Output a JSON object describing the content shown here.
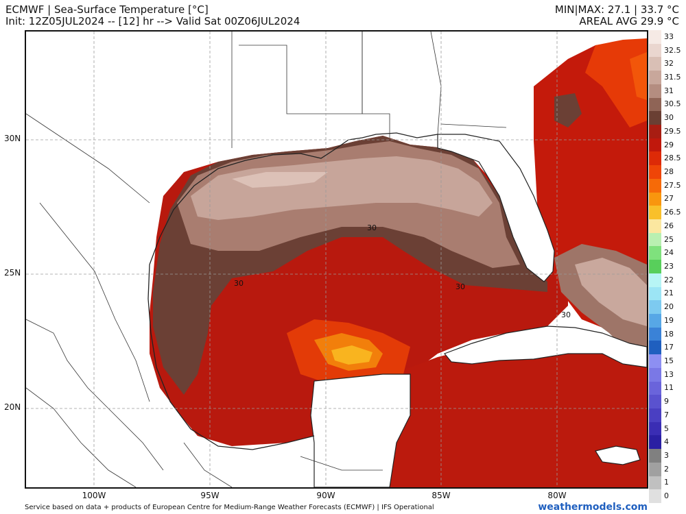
{
  "header": {
    "title": "ECMWF | Sea-Surface Temperature [°C]",
    "subtitle": "Init: 12Z05JUL2024 -- [12] hr --> Valid Sat 00Z06JUL2024",
    "minmax": "MIN|MAX: 27.1 | 33.7 °C",
    "areal_avg": "AREAL AVG 29.9 °C"
  },
  "axes": {
    "lat_labels": [
      "30N",
      "25N",
      "20N"
    ],
    "lon_labels": [
      "100W",
      "95W",
      "90W",
      "85W",
      "80W"
    ]
  },
  "contours": {
    "label": "30",
    "labels": [
      "30",
      "30",
      "30",
      "30"
    ]
  },
  "colorbar": {
    "labels": [
      "33",
      "32.5",
      "32",
      "31.5",
      "31",
      "30.5",
      "30",
      "29.5",
      "29",
      "28.5",
      "28",
      "27.5",
      "27",
      "26.5",
      "26",
      "25",
      "24",
      "23",
      "22",
      "21",
      "20",
      "19",
      "18",
      "17",
      "15",
      "13",
      "11",
      "9",
      "7",
      "5",
      "4",
      "3",
      "2",
      "1",
      "0"
    ],
    "colors": [
      "#f6eae5",
      "#ead6cf",
      "#d9bfb5",
      "#c8a79b",
      "#b48d80",
      "#8f6456",
      "#6a3f33",
      "#a81d12",
      "#c0180c",
      "#dd2a07",
      "#ef4507",
      "#f66a08",
      "#f9960e",
      "#f9c02a",
      "#fbe7a0",
      "#b9f0b1",
      "#7fe17d",
      "#58cf5b",
      "#b7f5f5",
      "#9ce5f5",
      "#7dcaf0",
      "#57a7e6",
      "#3a82d7",
      "#1f5fbf",
      "#8d8ff2",
      "#7a78e6",
      "#6a64db",
      "#5a52cf",
      "#4a3fc2",
      "#3a2db4",
      "#2a1fa3",
      "#808080",
      "#a0a0a0",
      "#c0c0c0",
      "#e0e0e0"
    ]
  },
  "footer": {
    "credit": "Service based on data + products of European Centre for Medium-Range Weather Forecasts (ECMWF) | IFS Operational",
    "site": "weathermodels.com"
  }
}
